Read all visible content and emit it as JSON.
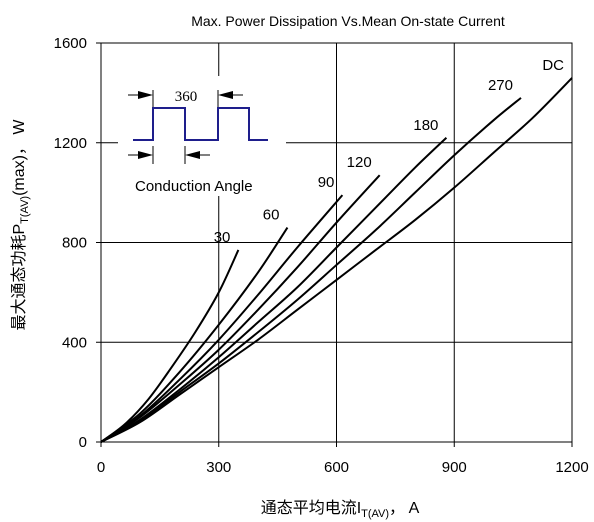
{
  "chart_data": {
    "type": "line",
    "title": "Max. Power Dissipation Vs.Mean On-state Current",
    "xlabel": "通态平均电流I",
    "xlabel_sub": "T(AV)",
    "xlabel_suffix": "，  A",
    "ylabel": "最大通态功耗P",
    "ylabel_sub": "T(AV)",
    "ylabel_suffix": "(max)，  W",
    "xlim": [
      0,
      1200
    ],
    "ylim": [
      0,
      1600
    ],
    "xticks": [
      0,
      300,
      600,
      900,
      1200
    ],
    "yticks": [
      0,
      400,
      800,
      1200,
      1600
    ],
    "xtick_labels": [
      "0",
      "300",
      "600",
      "900",
      "1200"
    ],
    "ytick_labels": [
      "0",
      "400",
      "800",
      "1200",
      "1600"
    ],
    "grid": true,
    "series": [
      {
        "name": "30",
        "x": [
          0,
          60,
          120,
          180,
          240,
          300,
          350
        ],
        "y": [
          0,
          70,
          170,
          300,
          440,
          600,
          770
        ]
      },
      {
        "name": "60",
        "x": [
          0,
          100,
          200,
          300,
          400,
          475
        ],
        "y": [
          0,
          115,
          280,
          470,
          680,
          860
        ]
      },
      {
        "name": "90",
        "x": [
          0,
          100,
          200,
          300,
          400,
          500,
          615
        ],
        "y": [
          0,
          105,
          250,
          410,
          590,
          780,
          990
        ]
      },
      {
        "name": "120",
        "x": [
          0,
          100,
          200,
          300,
          400,
          500,
          600,
          710
        ],
        "y": [
          0,
          100,
          230,
          370,
          530,
          700,
          880,
          1070
        ]
      },
      {
        "name": "180",
        "x": [
          0,
          100,
          200,
          300,
          400,
          500,
          600,
          700,
          800,
          880
        ],
        "y": [
          0,
          90,
          210,
          340,
          480,
          620,
          780,
          940,
          1100,
          1220
        ]
      },
      {
        "name": "270",
        "x": [
          0,
          100,
          200,
          300,
          400,
          500,
          600,
          700,
          800,
          900,
          1000,
          1070
        ],
        "y": [
          0,
          85,
          200,
          315,
          440,
          570,
          710,
          850,
          1000,
          1150,
          1290,
          1380
        ]
      },
      {
        "name": "DC",
        "x": [
          0,
          100,
          200,
          300,
          400,
          500,
          600,
          700,
          800,
          900,
          1000,
          1100,
          1200
        ],
        "y": [
          0,
          80,
          190,
          300,
          410,
          530,
          650,
          770,
          890,
          1020,
          1160,
          1300,
          1460
        ]
      }
    ],
    "inset": {
      "period_label": "360",
      "caption": "Conduction Angle"
    }
  }
}
